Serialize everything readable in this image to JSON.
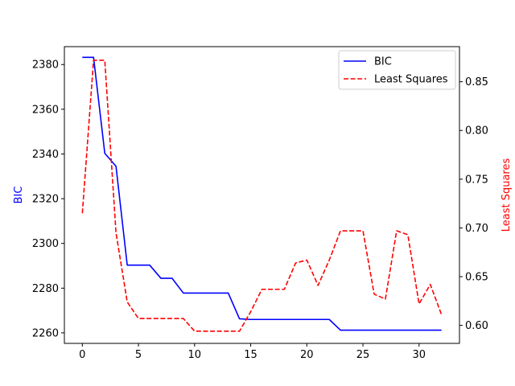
{
  "chart_data": {
    "type": "line",
    "title": "",
    "xlabel": "",
    "xlim": [
      -1.6,
      33.6
    ],
    "xticks": [
      0,
      5,
      10,
      15,
      20,
      25,
      30
    ],
    "y_left": {
      "label": "BIC",
      "color": "#0000ff",
      "lim": [
        2255.3,
        2388.0
      ],
      "ticks": [
        2260,
        2280,
        2300,
        2320,
        2340,
        2360,
        2380
      ]
    },
    "y_right": {
      "label": "Least Squares",
      "color": "#ff0000",
      "lim": [
        0.5815,
        0.886
      ],
      "ticks": [
        0.6,
        0.65,
        0.7,
        0.75,
        0.8,
        0.85
      ],
      "tick_labels": [
        "0.60",
        "0.65",
        "0.70",
        "0.75",
        "0.80",
        "0.85"
      ]
    },
    "legend_position": "upper-right",
    "series": [
      {
        "name": "BIC",
        "axis": "left",
        "color": "#0000ff",
        "style": "solid",
        "x": [
          0,
          1,
          2,
          3,
          4,
          5,
          6,
          7,
          8,
          9,
          10,
          11,
          12,
          13,
          14,
          15,
          16,
          17,
          18,
          19,
          20,
          21,
          22,
          23,
          24,
          25,
          26,
          27,
          28,
          29,
          30,
          31,
          32
        ],
        "values": [
          2383.2,
          2383.2,
          2340.3,
          2334.5,
          2290.3,
          2290.3,
          2290.3,
          2284.4,
          2284.4,
          2277.8,
          2277.8,
          2277.8,
          2277.8,
          2277.8,
          2266.3,
          2266.0,
          2266.0,
          2266.0,
          2266.0,
          2266.0,
          2266.0,
          2266.0,
          2266.0,
          2261.2,
          2261.2,
          2261.2,
          2261.2,
          2261.2,
          2261.2,
          2261.2,
          2261.2,
          2261.2,
          2261.2
        ]
      },
      {
        "name": "Least Squares",
        "axis": "right",
        "color": "#ff0000",
        "style": "dashed",
        "x": [
          0,
          1,
          2,
          3,
          4,
          5,
          6,
          7,
          8,
          9,
          10,
          11,
          12,
          13,
          14,
          15,
          16,
          17,
          18,
          19,
          20,
          21,
          22,
          23,
          24,
          25,
          26,
          27,
          28,
          29,
          30,
          31,
          32
        ],
        "values": [
          0.715,
          0.872,
          0.872,
          0.695,
          0.624,
          0.607,
          0.607,
          0.607,
          0.607,
          0.607,
          0.594,
          0.594,
          0.594,
          0.594,
          0.594,
          0.614,
          0.637,
          0.637,
          0.637,
          0.664,
          0.667,
          0.641,
          0.667,
          0.697,
          0.697,
          0.697,
          0.632,
          0.627,
          0.697,
          0.693,
          0.622,
          0.642,
          0.611
        ]
      }
    ]
  }
}
